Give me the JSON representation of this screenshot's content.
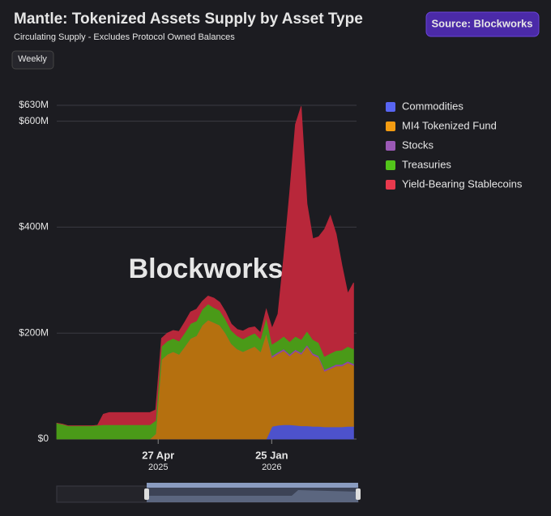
{
  "header": {
    "title": "Mantle: Tokenized Assets Supply by Asset Type",
    "subtitle": "Circulating Supply - Excludes Protocol Owned Balances",
    "source": "Source: Blockworks",
    "period": "Weekly",
    "watermark": "Blockworks"
  },
  "chart_data": {
    "type": "stacked_area",
    "x": [
      "2024-08-26",
      "2024-09-09",
      "2024-09-23",
      "2024-10-07",
      "2024-10-21",
      "2024-11-04",
      "2024-11-18",
      "2024-12-02",
      "2024-12-16",
      "2024-12-30",
      "2025-01-13",
      "2025-01-27",
      "2025-02-10",
      "2025-02-24",
      "2025-03-10",
      "2025-03-24",
      "2025-04-07",
      "2025-04-21",
      "2025-05-05",
      "2025-05-19",
      "2025-06-02",
      "2025-06-16",
      "2025-06-30",
      "2025-07-14",
      "2025-07-28",
      "2025-08-11",
      "2025-08-25",
      "2025-09-08",
      "2025-09-22",
      "2025-10-06",
      "2025-10-20",
      "2025-11-03",
      "2025-11-17",
      "2025-12-01",
      "2025-12-15",
      "2025-12-29",
      "2026-01-12",
      "2026-01-26",
      "2026-02-09",
      "2026-02-23",
      "2026-03-09",
      "2026-03-23",
      "2026-04-06",
      "2026-04-20",
      "2026-05-04",
      "2026-05-18",
      "2026-06-01",
      "2026-06-15",
      "2026-06-29",
      "2026-07-13",
      "2026-07-27",
      "2026-08-10"
    ],
    "series": [
      {
        "name": "Commodities",
        "color": "#4d52cc",
        "legend_color": "#5865f2",
        "values": [
          0,
          0,
          0,
          0,
          0,
          0,
          0,
          0,
          0,
          0,
          0,
          0,
          0,
          0,
          0,
          0,
          0,
          0,
          0,
          0,
          0,
          0,
          0,
          0,
          0,
          0,
          0,
          0,
          0,
          0,
          0,
          0,
          0,
          0,
          0,
          0,
          0,
          24,
          26,
          27,
          27,
          26,
          25,
          25,
          24,
          24,
          23,
          23,
          23,
          23,
          24,
          24
        ]
      },
      {
        "name": "MI4 Tokenized Fund",
        "color": "#b5700f",
        "legend_color": "#f39c12",
        "values": [
          0,
          0,
          0,
          0,
          0,
          0,
          0,
          0,
          0,
          0,
          0,
          0,
          0,
          0,
          0,
          0,
          0,
          10,
          150,
          160,
          165,
          160,
          175,
          190,
          195,
          215,
          225,
          220,
          215,
          200,
          180,
          170,
          165,
          170,
          175,
          165,
          200,
          130,
          135,
          140,
          130,
          140,
          135,
          150,
          135,
          130,
          105,
          110,
          115,
          115,
          120,
          115
        ]
      },
      {
        "name": "Stocks",
        "color": "#8e44ad",
        "legend_color": "#9b59b6",
        "values": [
          0,
          0,
          0,
          0,
          0,
          0,
          0,
          0,
          0,
          0,
          0,
          0,
          0,
          0,
          0,
          0,
          0,
          0,
          0,
          0,
          0,
          0,
          0,
          0,
          0,
          0,
          0,
          0,
          0,
          0,
          0,
          0,
          0,
          0,
          0,
          0,
          0,
          3,
          3,
          3,
          3,
          3,
          3,
          3,
          3,
          3,
          3,
          3,
          3,
          3,
          3,
          3
        ]
      },
      {
        "name": "Treasuries",
        "color": "#4a9a18",
        "legend_color": "#52c41a",
        "values": [
          30,
          28,
          25,
          25,
          25,
          25,
          25,
          26,
          27,
          27,
          27,
          27,
          27,
          27,
          27,
          27,
          27,
          25,
          25,
          25,
          25,
          25,
          26,
          28,
          28,
          30,
          30,
          28,
          28,
          26,
          25,
          25,
          24,
          25,
          25,
          24,
          30,
          22,
          22,
          24,
          24,
          25,
          25,
          26,
          26,
          25,
          25,
          26,
          26,
          27,
          28,
          28
        ]
      },
      {
        "name": "Yield-Bearing Stablecoins",
        "color": "#b8273a",
        "legend_color": "#e8394d",
        "values": [
          0,
          0,
          0,
          0,
          0,
          0,
          0,
          0,
          20,
          23,
          23,
          23,
          23,
          23,
          23,
          23,
          23,
          20,
          15,
          15,
          15,
          18,
          20,
          22,
          22,
          15,
          15,
          18,
          15,
          14,
          12,
          12,
          15,
          15,
          12,
          12,
          15,
          30,
          50,
          150,
          280,
          400,
          440,
          240,
          190,
          200,
          240,
          260,
          220,
          160,
          100,
          125
        ]
      }
    ],
    "xlim": [
      "2024-08-26",
      "2026-08-17"
    ],
    "xticks": [
      {
        "value": "2025-04-27",
        "label": "27 Apr",
        "sublabel": "2025"
      },
      {
        "value": "2026-01-25",
        "label": "25 Jan",
        "sublabel": "2026"
      }
    ],
    "ylim": [
      0,
      630
    ],
    "yticks": [
      {
        "value": 0,
        "label": "$0"
      },
      {
        "value": 200,
        "label": "$200M"
      },
      {
        "value": 400,
        "label": "$400M"
      },
      {
        "value": 600,
        "label": "$600M"
      },
      {
        "value": 630,
        "label": "$630M"
      }
    ],
    "grid": true,
    "legend": "right"
  }
}
